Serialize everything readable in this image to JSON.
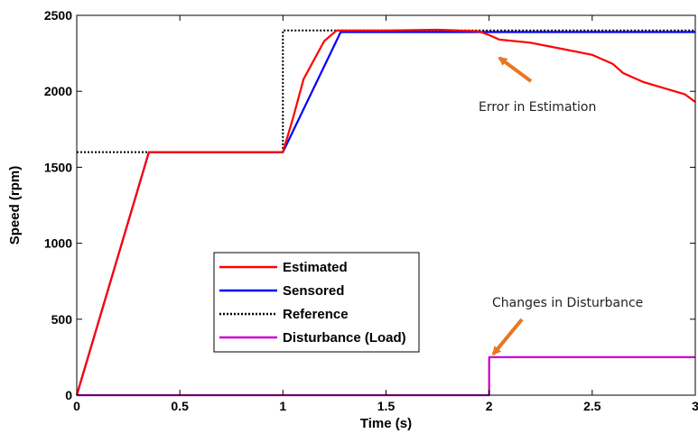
{
  "chart_data": {
    "type": "line",
    "xlabel": "Time (s)",
    "ylabel": "Speed (rpm)",
    "xlim": [
      0,
      3
    ],
    "ylim": [
      0,
      2500
    ],
    "xticks": [
      "0",
      "0.5",
      "1",
      "1.5",
      "2",
      "2.5",
      "3"
    ],
    "yticks": [
      "0",
      "500",
      "1000",
      "1500",
      "2000",
      "2500"
    ],
    "grid": false,
    "legend_position": "center-left",
    "series": [
      {
        "name": "Estimated",
        "color": "#ff0000",
        "style": "solid",
        "x": [
          0,
          0.35,
          1.0,
          1.05,
          1.1,
          1.2,
          1.26,
          1.5,
          1.75,
          1.95,
          2.0,
          2.05,
          2.2,
          2.35,
          2.5,
          2.6,
          2.65,
          2.75,
          2.85,
          2.95,
          3.0
        ],
        "y": [
          0,
          1600,
          1600,
          1830,
          2080,
          2330,
          2400,
          2400,
          2405,
          2395,
          2370,
          2340,
          2320,
          2280,
          2240,
          2180,
          2120,
          2060,
          2020,
          1980,
          1930
        ]
      },
      {
        "name": "Sensored",
        "color": "#0000ff",
        "style": "solid",
        "x": [
          0,
          0.35,
          1.0,
          1.28,
          3.0
        ],
        "y": [
          0,
          1600,
          1600,
          2390,
          2390
        ]
      },
      {
        "name": "Reference",
        "color": "#000000",
        "style": "dotted",
        "x": [
          0,
          1.0,
          1.0,
          3.0
        ],
        "y": [
          1600,
          1600,
          2400,
          2400
        ]
      },
      {
        "name": "Disturbance (Load)",
        "color": "#cc00cc",
        "style": "solid",
        "x": [
          0,
          2.0,
          2.0,
          3.0
        ],
        "y": [
          0,
          0,
          250,
          250
        ]
      }
    ],
    "annotations": [
      {
        "text": "Error in Estimation",
        "arrow_to": [
          2.05,
          2220
        ]
      },
      {
        "text": "Changes in Disturbance",
        "arrow_to": [
          2.02,
          270
        ]
      }
    ]
  }
}
